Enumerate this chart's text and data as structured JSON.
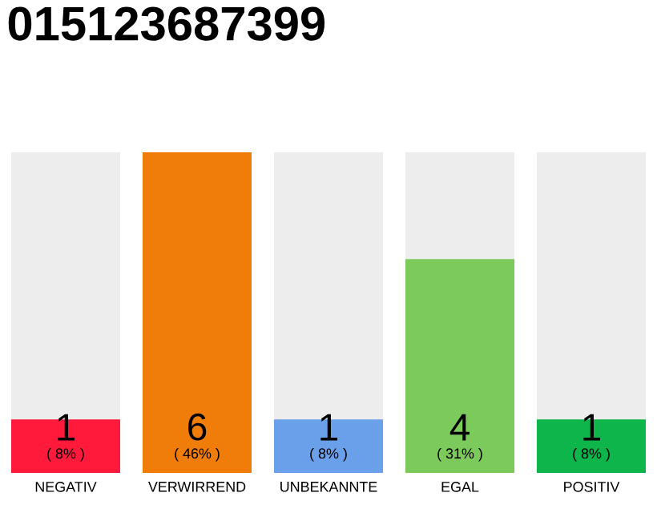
{
  "chart_data": {
    "type": "bar",
    "title": "015123687399",
    "categories": [
      "NEGATIV",
      "VERWIRREND",
      "UNBEKANNTE",
      "EGAL",
      "POSITIV"
    ],
    "values": [
      1,
      6,
      1,
      4,
      1
    ],
    "colors": [
      "#ff1a3c",
      "#f07d0a",
      "#6aa0ea",
      "#7cc95c",
      "#0db54a"
    ],
    "ylim": [
      0,
      6
    ],
    "data_labels": true,
    "annotations": [
      {
        "text": "( 8% )",
        "x": "NEGATIV",
        "y": 0
      },
      {
        "text": "( 46% )",
        "x": "VERWIRREND",
        "y": 0
      },
      {
        "text": "( 8% )",
        "x": "UNBEKANNTE",
        "y": 0
      },
      {
        "text": "( 31% )",
        "x": "EGAL",
        "y": 0
      },
      {
        "text": "( 8% )",
        "x": "POSITIV",
        "y": 0
      }
    ]
  }
}
